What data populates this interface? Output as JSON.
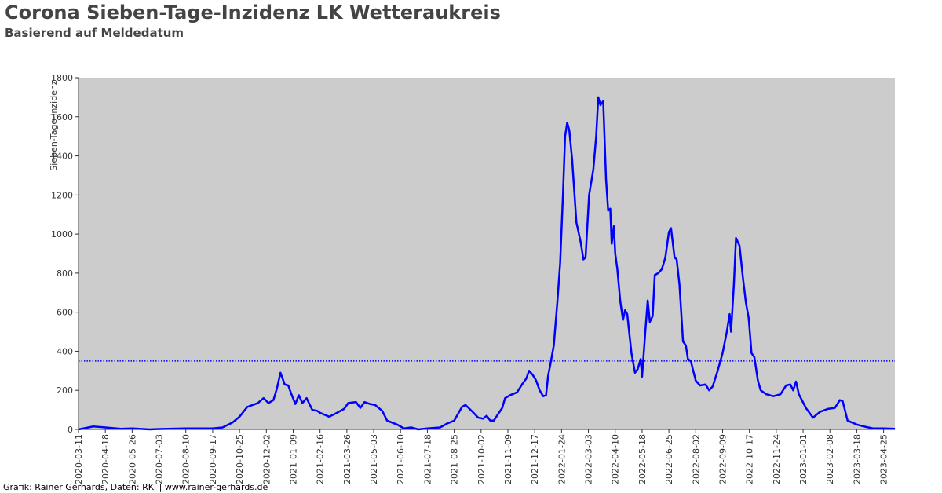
{
  "chart_data": {
    "type": "line",
    "title": "Corona Sieben-Tage-Inzidenz LK Wetteraukreis",
    "subtitle": "Basierend auf Meldedatum",
    "ylabel": "Sieben-Tage-Inzidenz",
    "footer": "Grafik: Rainer Gerhards, Daten: RKI | www.rainer-gerhards.de",
    "color": "#0000ff",
    "reference_line": 350,
    "xlim": [
      "2020-03-11",
      "2023-05-11"
    ],
    "xticks": [
      "2020-03-11",
      "2020-04-18",
      "2020-05-26",
      "2020-07-03",
      "2020-08-10",
      "2020-09-17",
      "2020-10-25",
      "2020-12-02",
      "2021-01-09",
      "2021-02-16",
      "2021-03-26",
      "2021-05-03",
      "2021-06-10",
      "2021-07-18",
      "2021-08-25",
      "2021-10-02",
      "2021-11-09",
      "2021-12-17",
      "2022-01-24",
      "2022-03-03",
      "2022-04-10",
      "2022-05-18",
      "2022-06-25",
      "2022-08-02",
      "2022-09-09",
      "2022-10-17",
      "2022-11-24",
      "2023-01-01",
      "2023-02-08",
      "2023-03-18",
      "2023-04-25"
    ],
    "ylim": [
      0,
      1800
    ],
    "yticks": [
      0,
      200,
      400,
      600,
      800,
      1000,
      1200,
      1400,
      1600,
      1800
    ],
    "x": [
      "2020-03-11",
      "2020-04-01",
      "2020-04-18",
      "2020-05-10",
      "2020-05-26",
      "2020-06-20",
      "2020-07-03",
      "2020-08-10",
      "2020-09-17",
      "2020-10-01",
      "2020-10-15",
      "2020-10-25",
      "2020-11-05",
      "2020-11-20",
      "2020-11-28",
      "2020-12-05",
      "2020-12-12",
      "2020-12-17",
      "2020-12-22",
      "2020-12-28",
      "2021-01-02",
      "2021-01-06",
      "2021-01-12",
      "2021-01-17",
      "2021-01-22",
      "2021-01-28",
      "2021-02-05",
      "2021-02-12",
      "2021-02-16",
      "2021-03-01",
      "2021-03-12",
      "2021-03-22",
      "2021-03-28",
      "2021-04-08",
      "2021-04-14",
      "2021-04-20",
      "2021-04-28",
      "2021-05-05",
      "2021-05-15",
      "2021-05-22",
      "2021-06-05",
      "2021-06-15",
      "2021-06-25",
      "2021-07-05",
      "2021-07-18",
      "2021-08-05",
      "2021-08-15",
      "2021-08-25",
      "2021-09-05",
      "2021-09-10",
      "2021-09-20",
      "2021-09-28",
      "2021-10-05",
      "2021-10-10",
      "2021-10-15",
      "2021-10-20",
      "2021-11-01",
      "2021-11-05",
      "2021-11-12",
      "2021-11-22",
      "2021-11-29",
      "2021-12-05",
      "2021-12-09",
      "2021-12-14",
      "2021-12-19",
      "2021-12-24",
      "2021-12-29",
      "2022-01-02",
      "2022-01-05",
      "2022-01-08",
      "2022-01-13",
      "2022-01-18",
      "2022-01-22",
      "2022-01-26",
      "2022-01-29",
      "2022-02-01",
      "2022-02-04",
      "2022-02-08",
      "2022-02-14",
      "2022-02-20",
      "2022-02-24",
      "2022-02-27",
      "2022-03-04",
      "2022-03-10",
      "2022-03-14",
      "2022-03-17",
      "2022-03-20",
      "2022-03-24",
      "2022-03-28",
      "2022-03-31",
      "2022-04-03",
      "2022-04-05",
      "2022-04-08",
      "2022-04-10",
      "2022-04-13",
      "2022-04-17",
      "2022-04-21",
      "2022-04-24",
      "2022-04-27",
      "2022-05-03",
      "2022-05-08",
      "2022-05-12",
      "2022-05-16",
      "2022-05-18",
      "2022-05-23",
      "2022-05-26",
      "2022-05-29",
      "2022-06-02",
      "2022-06-05",
      "2022-06-10",
      "2022-06-15",
      "2022-06-20",
      "2022-06-25",
      "2022-06-28",
      "2022-07-03",
      "2022-07-06",
      "2022-07-10",
      "2022-07-15",
      "2022-07-19",
      "2022-07-22",
      "2022-07-26",
      "2022-08-02",
      "2022-08-08",
      "2022-08-16",
      "2022-08-21",
      "2022-08-26",
      "2022-09-02",
      "2022-09-09",
      "2022-09-15",
      "2022-09-19",
      "2022-09-21",
      "2022-09-25",
      "2022-09-28",
      "2022-10-03",
      "2022-10-08",
      "2022-10-12",
      "2022-10-16",
      "2022-10-20",
      "2022-10-24",
      "2022-10-29",
      "2022-11-02",
      "2022-11-10",
      "2022-11-20",
      "2022-11-30",
      "2022-12-08",
      "2022-12-14",
      "2022-12-18",
      "2022-12-22",
      "2022-12-26",
      "2023-01-05",
      "2023-01-15",
      "2023-01-25",
      "2023-02-05",
      "2023-02-15",
      "2023-02-22",
      "2023-02-26",
      "2023-03-05",
      "2023-03-18",
      "2023-03-28",
      "2023-04-10",
      "2023-04-25",
      "2023-05-11"
    ],
    "values": [
      0,
      15,
      10,
      3,
      5,
      0,
      2,
      5,
      5,
      10,
      35,
      65,
      115,
      135,
      160,
      135,
      150,
      210,
      290,
      230,
      225,
      185,
      130,
      175,
      135,
      160,
      100,
      95,
      85,
      65,
      85,
      105,
      135,
      140,
      110,
      140,
      130,
      125,
      95,
      45,
      25,
      5,
      10,
      0,
      5,
      10,
      30,
      45,
      115,
      125,
      90,
      60,
      55,
      70,
      45,
      45,
      110,
      160,
      175,
      190,
      230,
      260,
      300,
      280,
      250,
      200,
      170,
      175,
      275,
      330,
      430,
      650,
      850,
      1200,
      1500,
      1570,
      1530,
      1380,
      1060,
      960,
      870,
      880,
      1200,
      1330,
      1500,
      1700,
      1660,
      1680,
      1280,
      1120,
      1130,
      950,
      1040,
      900,
      820,
      660,
      560,
      610,
      590,
      390,
      290,
      310,
      360,
      270,
      520,
      660,
      550,
      580,
      790,
      800,
      820,
      880,
      1010,
      1030,
      880,
      870,
      740,
      450,
      430,
      360,
      350,
      250,
      225,
      230,
      200,
      220,
      300,
      390,
      500,
      590,
      500,
      740,
      980,
      940,
      770,
      650,
      570,
      390,
      370,
      250,
      200,
      180,
      170,
      180,
      225,
      230,
      200,
      245,
      180,
      110,
      60,
      90,
      105,
      110,
      150,
      145,
      45,
      25,
      15,
      5,
      5,
      3
    ]
  }
}
